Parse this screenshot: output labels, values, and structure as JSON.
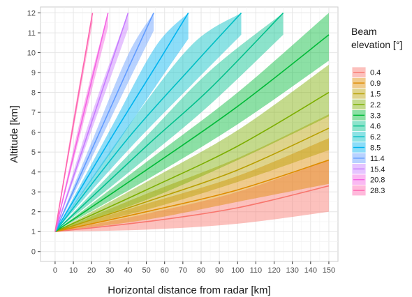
{
  "chart_data": {
    "type": "line",
    "xlabel": "Horizontal distance from radar [km]",
    "ylabel": "Altitude [km]",
    "xlim": [
      -8,
      155
    ],
    "ylim": [
      -0.5,
      12.3
    ],
    "x_ticks": [
      0,
      10,
      20,
      30,
      40,
      50,
      60,
      70,
      80,
      90,
      100,
      110,
      120,
      130,
      140,
      150
    ],
    "y_ticks": [
      0,
      1,
      2,
      3,
      4,
      5,
      6,
      7,
      8,
      9,
      10,
      11,
      12
    ],
    "grid": true,
    "legend": {
      "title": "Beam\nelevation [°]",
      "position": "right"
    },
    "origin": {
      "x": 0,
      "y": 1
    },
    "band_note": "each series drawn as center line with shaded band of the half-power beam width",
    "series": [
      {
        "name": "0.4",
        "color": "#F8766D",
        "x": [
          0,
          50,
          100,
          150
        ],
        "y": [
          1.0,
          1.5,
          2.2,
          3.3
        ],
        "lower": [
          1.0,
          1.1,
          1.4,
          2.0
        ],
        "upper": [
          1.0,
          1.9,
          3.0,
          4.6
        ]
      },
      {
        "name": "0.9",
        "color": "#DE8C00",
        "x": [
          0,
          50,
          100,
          150
        ],
        "y": [
          1.0,
          2.0,
          3.1,
          4.6
        ],
        "lower": [
          1.0,
          1.6,
          2.5,
          3.4
        ],
        "upper": [
          1.0,
          2.4,
          3.8,
          5.7
        ]
      },
      {
        "name": "1.5",
        "color": "#B79F00",
        "x": [
          0,
          50,
          100,
          150
        ],
        "y": [
          1.0,
          2.5,
          4.1,
          6.2
        ],
        "lower": [
          1.0,
          2.1,
          3.5,
          5.1
        ],
        "upper": [
          1.0,
          2.9,
          4.7,
          6.9
        ]
      },
      {
        "name": "2.2",
        "color": "#7CAE00",
        "x": [
          0,
          50,
          100,
          150
        ],
        "y": [
          1.0,
          3.1,
          5.3,
          8.0
        ],
        "lower": [
          1.0,
          2.6,
          4.6,
          6.8
        ],
        "upper": [
          1.0,
          3.5,
          6.1,
          9.4
        ]
      },
      {
        "name": "3.3",
        "color": "#00BA38",
        "x": [
          0,
          50,
          100,
          150
        ],
        "y": [
          1.0,
          4.1,
          7.3,
          10.9
        ],
        "lower": [
          1.0,
          3.6,
          6.4,
          9.6
        ],
        "upper": [
          1.0,
          4.5,
          8.0,
          12.0
        ]
      },
      {
        "name": "4.6",
        "color": "#00C08B",
        "x": [
          0,
          50,
          85,
          125
        ],
        "y": [
          1.0,
          5.3,
          8.2,
          12.0
        ],
        "lower": [
          1.0,
          4.7,
          7.4,
          10.9
        ],
        "upper": [
          1.0,
          5.8,
          9.1,
          12.0
        ]
      },
      {
        "name": "6.2",
        "color": "#00BFC4",
        "x": [
          0,
          40,
          75,
          102
        ],
        "y": [
          1.0,
          5.7,
          9.3,
          12.0
        ],
        "lower": [
          1.0,
          5.1,
          8.4,
          10.9
        ],
        "upper": [
          1.0,
          6.3,
          10.4,
          12.0
        ]
      },
      {
        "name": "8.5",
        "color": "#00B4F0",
        "x": [
          0,
          30,
          55,
          73
        ],
        "y": [
          1.0,
          5.6,
          9.3,
          12.0
        ],
        "lower": [
          1.0,
          4.9,
          8.3,
          10.7
        ],
        "upper": [
          1.0,
          6.1,
          10.3,
          12.0
        ]
      },
      {
        "name": "11.4",
        "color": "#619CFF",
        "x": [
          0,
          20,
          40,
          54
        ],
        "y": [
          1.0,
          5.1,
          9.2,
          12.0
        ],
        "lower": [
          1.0,
          4.7,
          8.5,
          11.1
        ],
        "upper": [
          1.0,
          5.5,
          9.9,
          12.0
        ]
      },
      {
        "name": "15.4",
        "color": "#C77CFF",
        "x": [
          0,
          20,
          40
        ],
        "y": [
          1.0,
          6.5,
          12.0
        ],
        "lower": [
          1.0,
          6.1,
          11.2
        ],
        "upper": [
          1.0,
          6.9,
          12.0
        ]
      },
      {
        "name": "20.8",
        "color": "#F564E3",
        "x": [
          0,
          15,
          29
        ],
        "y": [
          1.0,
          6.7,
          12.0
        ],
        "lower": [
          1.0,
          6.3,
          11.3
        ],
        "upper": [
          1.0,
          7.1,
          12.0
        ]
      },
      {
        "name": "28.3",
        "color": "#FF64B0",
        "x": [
          0,
          10,
          20.5
        ],
        "y": [
          1.0,
          6.4,
          12.0
        ],
        "lower": [
          1.0,
          6.1,
          11.5
        ],
        "upper": [
          1.0,
          6.7,
          12.0
        ]
      }
    ]
  }
}
